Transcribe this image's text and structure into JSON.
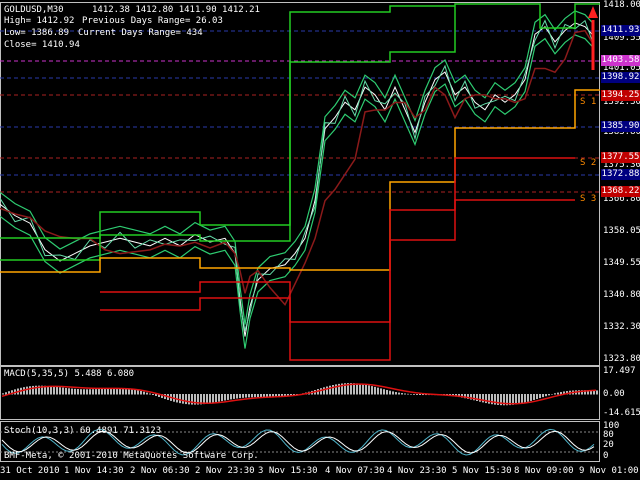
{
  "header": {
    "symbol": "GOLDUSD,M30",
    "ohlc": "1412.38 1412.80 1411.90 1412.21",
    "high_label": "High= 1412.92",
    "prev_range": "Previous Days Range= 26.03",
    "low_label": "Low= 1386.89",
    "curr_range": "Current Days Range= 434",
    "close_label": "Close= 1410.94"
  },
  "price_scale": [
    "1418.00",
    "1409.55",
    "1401.05",
    "1392.30",
    "1383.80",
    "1375.30",
    "1366.80",
    "1358.05",
    "1349.55",
    "1340.80",
    "1332.30",
    "1323.80"
  ],
  "price_tags": [
    {
      "text": "1411.93",
      "bg": "#000080"
    },
    {
      "text": "1403.58",
      "bg": "#cc33cc"
    },
    {
      "text": "1398.92",
      "bg": "#000080"
    },
    {
      "text": "1394.25",
      "bg": "#c00000"
    },
    {
      "text": "1385.90",
      "bg": "#000080"
    },
    {
      "text": "1377.55",
      "bg": "#c00000"
    },
    {
      "text": "1372.88",
      "bg": "#000080"
    },
    {
      "text": "1368.22",
      "bg": "#c00000"
    }
  ],
  "support_labels": [
    "S 1",
    "S 2",
    "S 3"
  ],
  "macd": {
    "label": "MACD(5,35,5) 5.488 6.080",
    "scale": [
      "17.497",
      "0.00",
      "-14.615"
    ]
  },
  "stoch": {
    "label": "Stoch(10,3,3) 60.4891 71.3123",
    "scale": [
      "100",
      "80",
      "20",
      "0"
    ]
  },
  "watermark": "BMF-Meta, © 2001-2010 MetaQuotes Software Corp.",
  "time_axis": [
    "31 Oct 2010",
    "1 Nov 14:30",
    "2 Nov 06:30",
    "2 Nov 23:30",
    "3 Nov 15:30",
    "4 Nov 07:30",
    "4 Nov 23:30",
    "5 Nov 15:30",
    "8 Nov 09:00",
    "9 Nov 01:00"
  ],
  "colors": {
    "bb": "#2ecc71",
    "bb_inner": "#66ddaa",
    "ma": "#8b1a1a",
    "green_lvl": "#22cc22",
    "red_lvl": "#dd1111",
    "orange_lvl": "#ffa500",
    "arrow": "#ff2020"
  }
}
